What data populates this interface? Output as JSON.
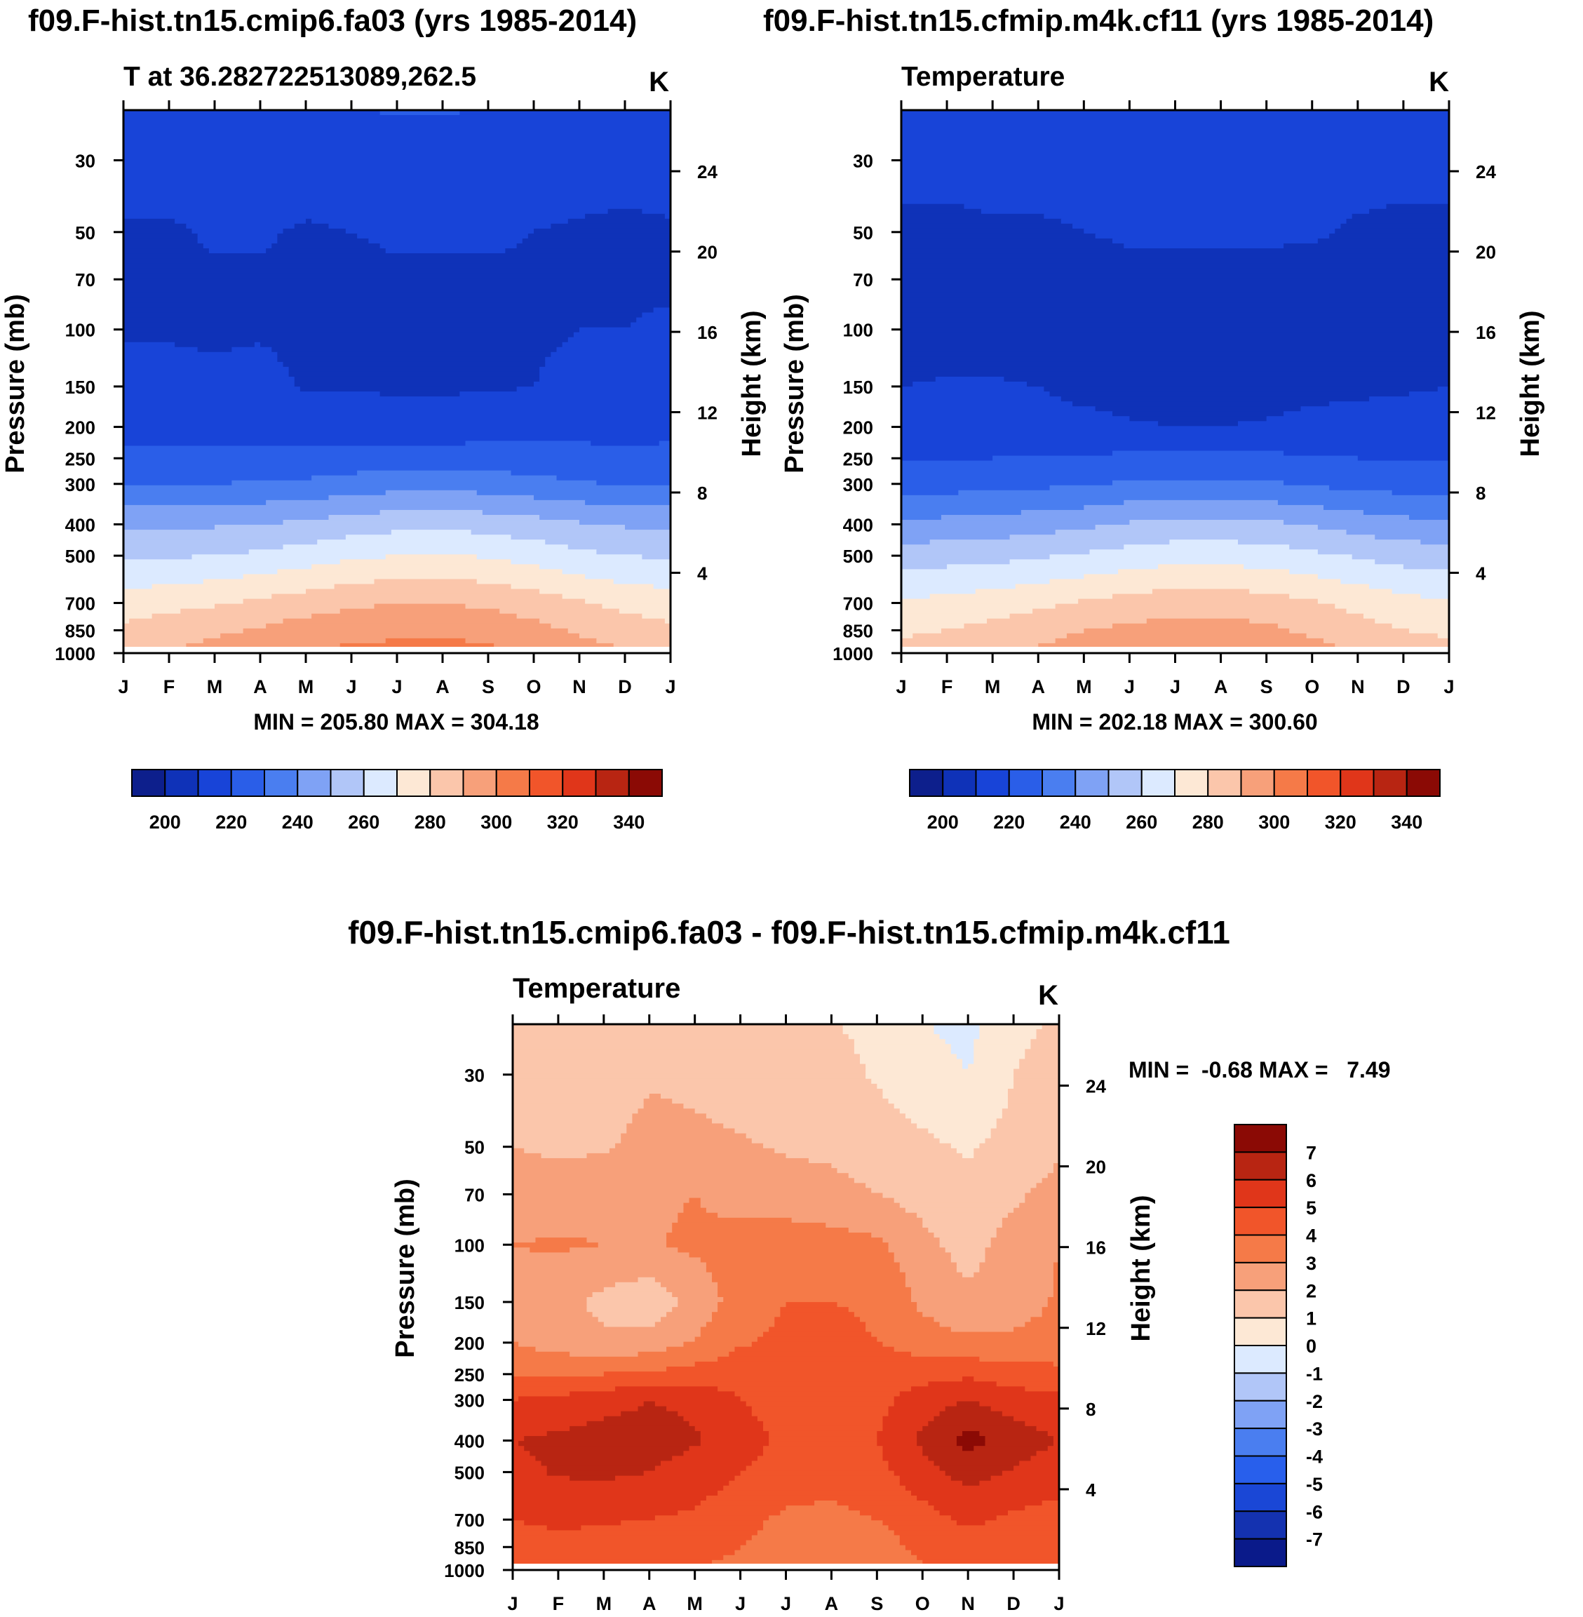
{
  "chart_data": [
    {
      "type": "contour",
      "page_title": "f09.F-hist.tn15.cmip6.fa03 (yrs 1985-2014)",
      "left_title": "T at 36.282722513089,262.5",
      "right_title": "K",
      "ylabel": "Pressure (mb)",
      "y2label": "Height (km)",
      "x_ticks": [
        "J",
        "F",
        "M",
        "A",
        "M",
        "J",
        "J",
        "A",
        "S",
        "O",
        "N",
        "D",
        "J"
      ],
      "p_ticks": [
        30,
        50,
        70,
        100,
        150,
        200,
        250,
        300,
        400,
        500,
        700,
        850,
        1000
      ],
      "h_ticks": [
        24,
        20,
        16,
        12,
        8,
        4
      ],
      "stats": "MIN = 205.80 MAX = 304.18",
      "colorbar_labels": [
        "200",
        "220",
        "240",
        "260",
        "280",
        "300",
        "320",
        "340"
      ],
      "levels": [
        190,
        200,
        210,
        220,
        230,
        240,
        250,
        260,
        270,
        280,
        290,
        300,
        310,
        320,
        330,
        340,
        350
      ],
      "colors": [
        "#0d1f8c",
        "#0f32b8",
        "#1844d8",
        "#2a5ee8",
        "#4a7ef0",
        "#7fa2f5",
        "#b1c6f8",
        "#dceaff",
        "#fde8d5",
        "#fbc6ab",
        "#f7a07a",
        "#f57a48",
        "#f1552a",
        "#e0361a",
        "#b82512",
        "#8b0a05"
      ],
      "field": {
        "pressure": [
          20,
          30,
          50,
          70,
          100,
          150,
          200,
          250,
          300,
          400,
          500,
          700,
          850,
          1000
        ],
        "months": [
          "J",
          "F",
          "M",
          "A",
          "M",
          "J",
          "J",
          "A",
          "S",
          "O",
          "N",
          "D",
          "J"
        ],
        "values": [
          [
            218,
            218,
            218,
            218,
            219,
            220,
            221,
            221,
            220,
            218,
            218,
            218,
            218
          ],
          [
            214,
            214,
            214,
            214,
            215,
            216,
            217,
            217,
            216,
            214,
            214,
            214,
            214
          ],
          [
            209,
            209,
            211,
            211,
            209,
            210,
            211,
            211,
            211,
            210,
            209,
            208,
            209
          ],
          [
            208,
            208,
            209,
            209,
            208,
            208,
            209,
            209,
            209,
            209,
            209,
            209,
            209
          ],
          [
            209,
            209,
            208,
            209,
            208,
            208,
            208,
            208,
            208,
            209,
            210,
            210,
            211
          ],
          [
            213,
            213,
            213,
            213,
            209,
            209,
            209,
            209,
            209,
            210,
            212,
            212,
            213
          ],
          [
            217,
            217,
            217,
            217,
            216,
            215,
            214,
            214,
            215,
            216,
            217,
            217,
            218
          ],
          [
            222,
            222,
            222,
            222,
            223,
            224,
            225,
            225,
            225,
            224,
            223,
            222,
            222
          ],
          [
            229,
            229,
            230,
            231,
            232,
            234,
            236,
            237,
            235,
            233,
            231,
            229,
            229
          ],
          [
            248,
            248,
            249,
            250,
            252,
            255,
            257,
            258,
            256,
            254,
            251,
            249,
            248
          ],
          [
            258,
            259,
            260,
            262,
            265,
            268,
            270,
            271,
            269,
            266,
            262,
            260,
            259
          ],
          [
            275,
            277,
            279,
            282,
            285,
            288,
            290,
            290,
            288,
            285,
            281,
            277,
            275
          ],
          [
            282,
            285,
            288,
            291,
            295,
            297,
            298,
            298,
            297,
            293,
            289,
            285,
            282
          ],
          [
            288,
            291,
            294,
            297,
            300,
            302,
            303,
            304,
            302,
            299,
            294,
            291,
            288
          ]
        ]
      }
    },
    {
      "type": "contour",
      "page_title": "f09.F-hist.tn15.cfmip.m4k.cf11 (yrs 1985-2014)",
      "left_title": "Temperature",
      "right_title": "K",
      "ylabel": "Pressure (mb)",
      "y2label": "Height (km)",
      "x_ticks": [
        "J",
        "F",
        "M",
        "A",
        "M",
        "J",
        "J",
        "A",
        "S",
        "O",
        "N",
        "D",
        "J"
      ],
      "p_ticks": [
        30,
        50,
        70,
        100,
        150,
        200,
        250,
        300,
        400,
        500,
        700,
        850,
        1000
      ],
      "h_ticks": [
        24,
        20,
        16,
        12,
        8,
        4
      ],
      "stats": "MIN = 202.18 MAX = 300.60",
      "colorbar_labels": [
        "200",
        "220",
        "240",
        "260",
        "280",
        "300",
        "320",
        "340"
      ],
      "levels": [
        190,
        200,
        210,
        220,
        230,
        240,
        250,
        260,
        270,
        280,
        290,
        300,
        310,
        320,
        330,
        340,
        350
      ],
      "colors": [
        "#0d1f8c",
        "#0f32b8",
        "#1844d8",
        "#2a5ee8",
        "#4a7ef0",
        "#7fa2f5",
        "#b1c6f8",
        "#dceaff",
        "#fde8d5",
        "#fbc6ab",
        "#f7a07a",
        "#f57a48",
        "#f1552a",
        "#e0361a",
        "#b82512",
        "#8b0a05"
      ],
      "field": {
        "pressure": [
          20,
          30,
          50,
          70,
          100,
          150,
          200,
          250,
          300,
          400,
          500,
          700,
          850,
          1000
        ],
        "months": [
          "J",
          "F",
          "M",
          "A",
          "M",
          "J",
          "J",
          "A",
          "S",
          "O",
          "N",
          "D",
          "J"
        ],
        "values": [
          [
            216,
            216,
            216,
            216,
            216,
            217,
            219,
            219,
            218,
            216,
            216,
            216,
            216
          ],
          [
            213,
            213,
            213,
            213,
            213,
            213,
            214,
            214,
            214,
            213,
            213,
            213,
            213
          ],
          [
            208,
            208,
            209,
            209,
            210,
            211,
            211,
            211,
            211,
            211,
            209,
            208,
            208
          ],
          [
            206,
            206,
            206,
            207,
            207,
            208,
            208,
            208,
            208,
            207,
            207,
            206,
            206
          ],
          [
            205,
            205,
            205,
            205,
            205,
            205,
            205,
            205,
            205,
            205,
            205,
            205,
            205
          ],
          [
            210,
            211,
            211,
            210,
            207,
            206,
            206,
            206,
            206,
            207,
            208,
            209,
            210
          ],
          [
            214,
            214,
            214,
            214,
            213,
            211,
            210,
            210,
            211,
            213,
            214,
            214,
            214
          ],
          [
            219,
            220,
            220,
            221,
            221,
            222,
            223,
            223,
            222,
            221,
            220,
            220,
            219
          ],
          [
            226,
            226,
            227,
            228,
            229,
            231,
            232,
            232,
            231,
            229,
            227,
            226,
            226
          ],
          [
            242,
            243,
            244,
            246,
            248,
            251,
            253,
            253,
            252,
            249,
            246,
            243,
            242
          ],
          [
            255,
            256,
            257,
            259,
            261,
            264,
            266,
            266,
            265,
            262,
            259,
            256,
            255
          ],
          [
            271,
            273,
            275,
            278,
            281,
            284,
            286,
            286,
            284,
            281,
            277,
            273,
            271
          ],
          [
            278,
            280,
            283,
            286,
            290,
            292,
            294,
            294,
            292,
            288,
            284,
            280,
            278
          ],
          [
            284,
            286,
            289,
            292,
            295,
            297,
            299,
            300,
            298,
            294,
            290,
            286,
            284
          ]
        ]
      }
    },
    {
      "type": "contour",
      "page_title": "f09.F-hist.tn15.cmip6.fa03 - f09.F-hist.tn15.cfmip.m4k.cf11",
      "left_title": "Temperature",
      "right_title": "K",
      "ylabel": "Pressure (mb)",
      "y2label": "Height (km)",
      "x_ticks": [
        "J",
        "F",
        "M",
        "A",
        "M",
        "J",
        "J",
        "A",
        "S",
        "O",
        "N",
        "D",
        "J"
      ],
      "p_ticks": [
        30,
        50,
        70,
        100,
        150,
        200,
        250,
        300,
        400,
        500,
        700,
        850,
        1000
      ],
      "h_ticks": [
        24,
        20,
        16,
        12,
        8,
        4
      ],
      "stats": "MIN =  -0.68 MAX =   7.49",
      "colorbar_labels": [
        "7",
        "6",
        "5",
        "4",
        "3",
        "2",
        "1",
        "0",
        "-1",
        "-2",
        "-3",
        "-4",
        "-5",
        "-6",
        "-7"
      ],
      "levels": [
        -8,
        -7,
        -6,
        -5,
        -4,
        -3,
        -2,
        -1,
        0,
        1,
        2,
        3,
        4,
        5,
        6,
        7,
        8
      ],
      "colors": [
        "#0a1a8a",
        "#1432b0",
        "#1a47d6",
        "#285fec",
        "#4a7ef0",
        "#7fa2f5",
        "#b1c6f8",
        "#dceaff",
        "#fde8d5",
        "#fbc6ab",
        "#f7a07a",
        "#f57a48",
        "#f1552a",
        "#e0361a",
        "#b82512",
        "#8b0a05"
      ],
      "field": {
        "pressure": [
          20,
          30,
          50,
          70,
          100,
          150,
          200,
          250,
          300,
          400,
          500,
          700,
          850,
          1000
        ],
        "months": [
          "J",
          "F",
          "M",
          "A",
          "M",
          "J",
          "J",
          "A",
          "S",
          "O",
          "N",
          "D",
          "J"
        ],
        "values": [
          [
            1.4,
            1.4,
            1.6,
            1.5,
            1.6,
            1.3,
            1.0,
            1.0,
            0.8,
            0.0,
            -0.3,
            0.6,
            1.2
          ],
          [
            1.6,
            1.2,
            1.5,
            1.9,
            1.8,
            1.6,
            1.5,
            1.3,
            0.9,
            0.4,
            0.0,
            1.0,
            1.5
          ],
          [
            2.0,
            1.8,
            1.9,
            2.3,
            2.2,
            2.1,
            1.9,
            1.8,
            1.5,
            1.2,
            0.9,
            1.3,
            1.8
          ],
          [
            2.5,
            2.5,
            2.7,
            2.8,
            3.0,
            2.6,
            2.4,
            2.3,
            2.0,
            1.6,
            1.2,
            1.8,
            2.4
          ],
          [
            3.0,
            3.1,
            3.0,
            2.9,
            3.2,
            3.4,
            3.6,
            3.4,
            3.2,
            2.3,
            1.6,
            2.5,
            3.0
          ],
          [
            2.8,
            2.4,
            1.7,
            1.3,
            2.3,
            3.5,
            4.0,
            4.0,
            3.9,
            2.8,
            2.2,
            2.6,
            3.1
          ],
          [
            3.0,
            2.6,
            2.2,
            2.4,
            3.1,
            3.9,
            4.2,
            4.2,
            4.0,
            3.5,
            3.2,
            3.2,
            3.3
          ],
          [
            3.9,
            3.8,
            4.0,
            4.2,
            4.4,
            4.6,
            4.7,
            4.7,
            4.6,
            4.6,
            4.8,
            4.5,
            4.3
          ],
          [
            5.0,
            5.3,
            5.6,
            6.0,
            5.8,
            5.0,
            4.6,
            4.4,
            4.7,
            5.5,
            6.0,
            5.5,
            5.2
          ],
          [
            6.0,
            6.2,
            6.5,
            6.4,
            6.1,
            5.4,
            4.8,
            4.6,
            5.0,
            6.2,
            7.4,
            6.5,
            6.0
          ],
          [
            5.7,
            6.1,
            6.2,
            6.0,
            5.6,
            5.0,
            4.6,
            4.4,
            4.7,
            5.6,
            6.4,
            5.9,
            5.5
          ],
          [
            5.0,
            5.2,
            5.1,
            5.0,
            4.8,
            4.3,
            3.8,
            3.7,
            4.0,
            4.6,
            5.2,
            4.8,
            4.6
          ],
          [
            4.6,
            4.7,
            4.6,
            4.5,
            4.3,
            4.0,
            3.6,
            3.5,
            3.6,
            4.2,
            4.6,
            4.3,
            4.2
          ],
          [
            4.2,
            4.3,
            4.2,
            4.1,
            4.0,
            3.8,
            3.5,
            3.4,
            3.4,
            3.9,
            4.2,
            4.0,
            4.0
          ]
        ]
      }
    }
  ]
}
